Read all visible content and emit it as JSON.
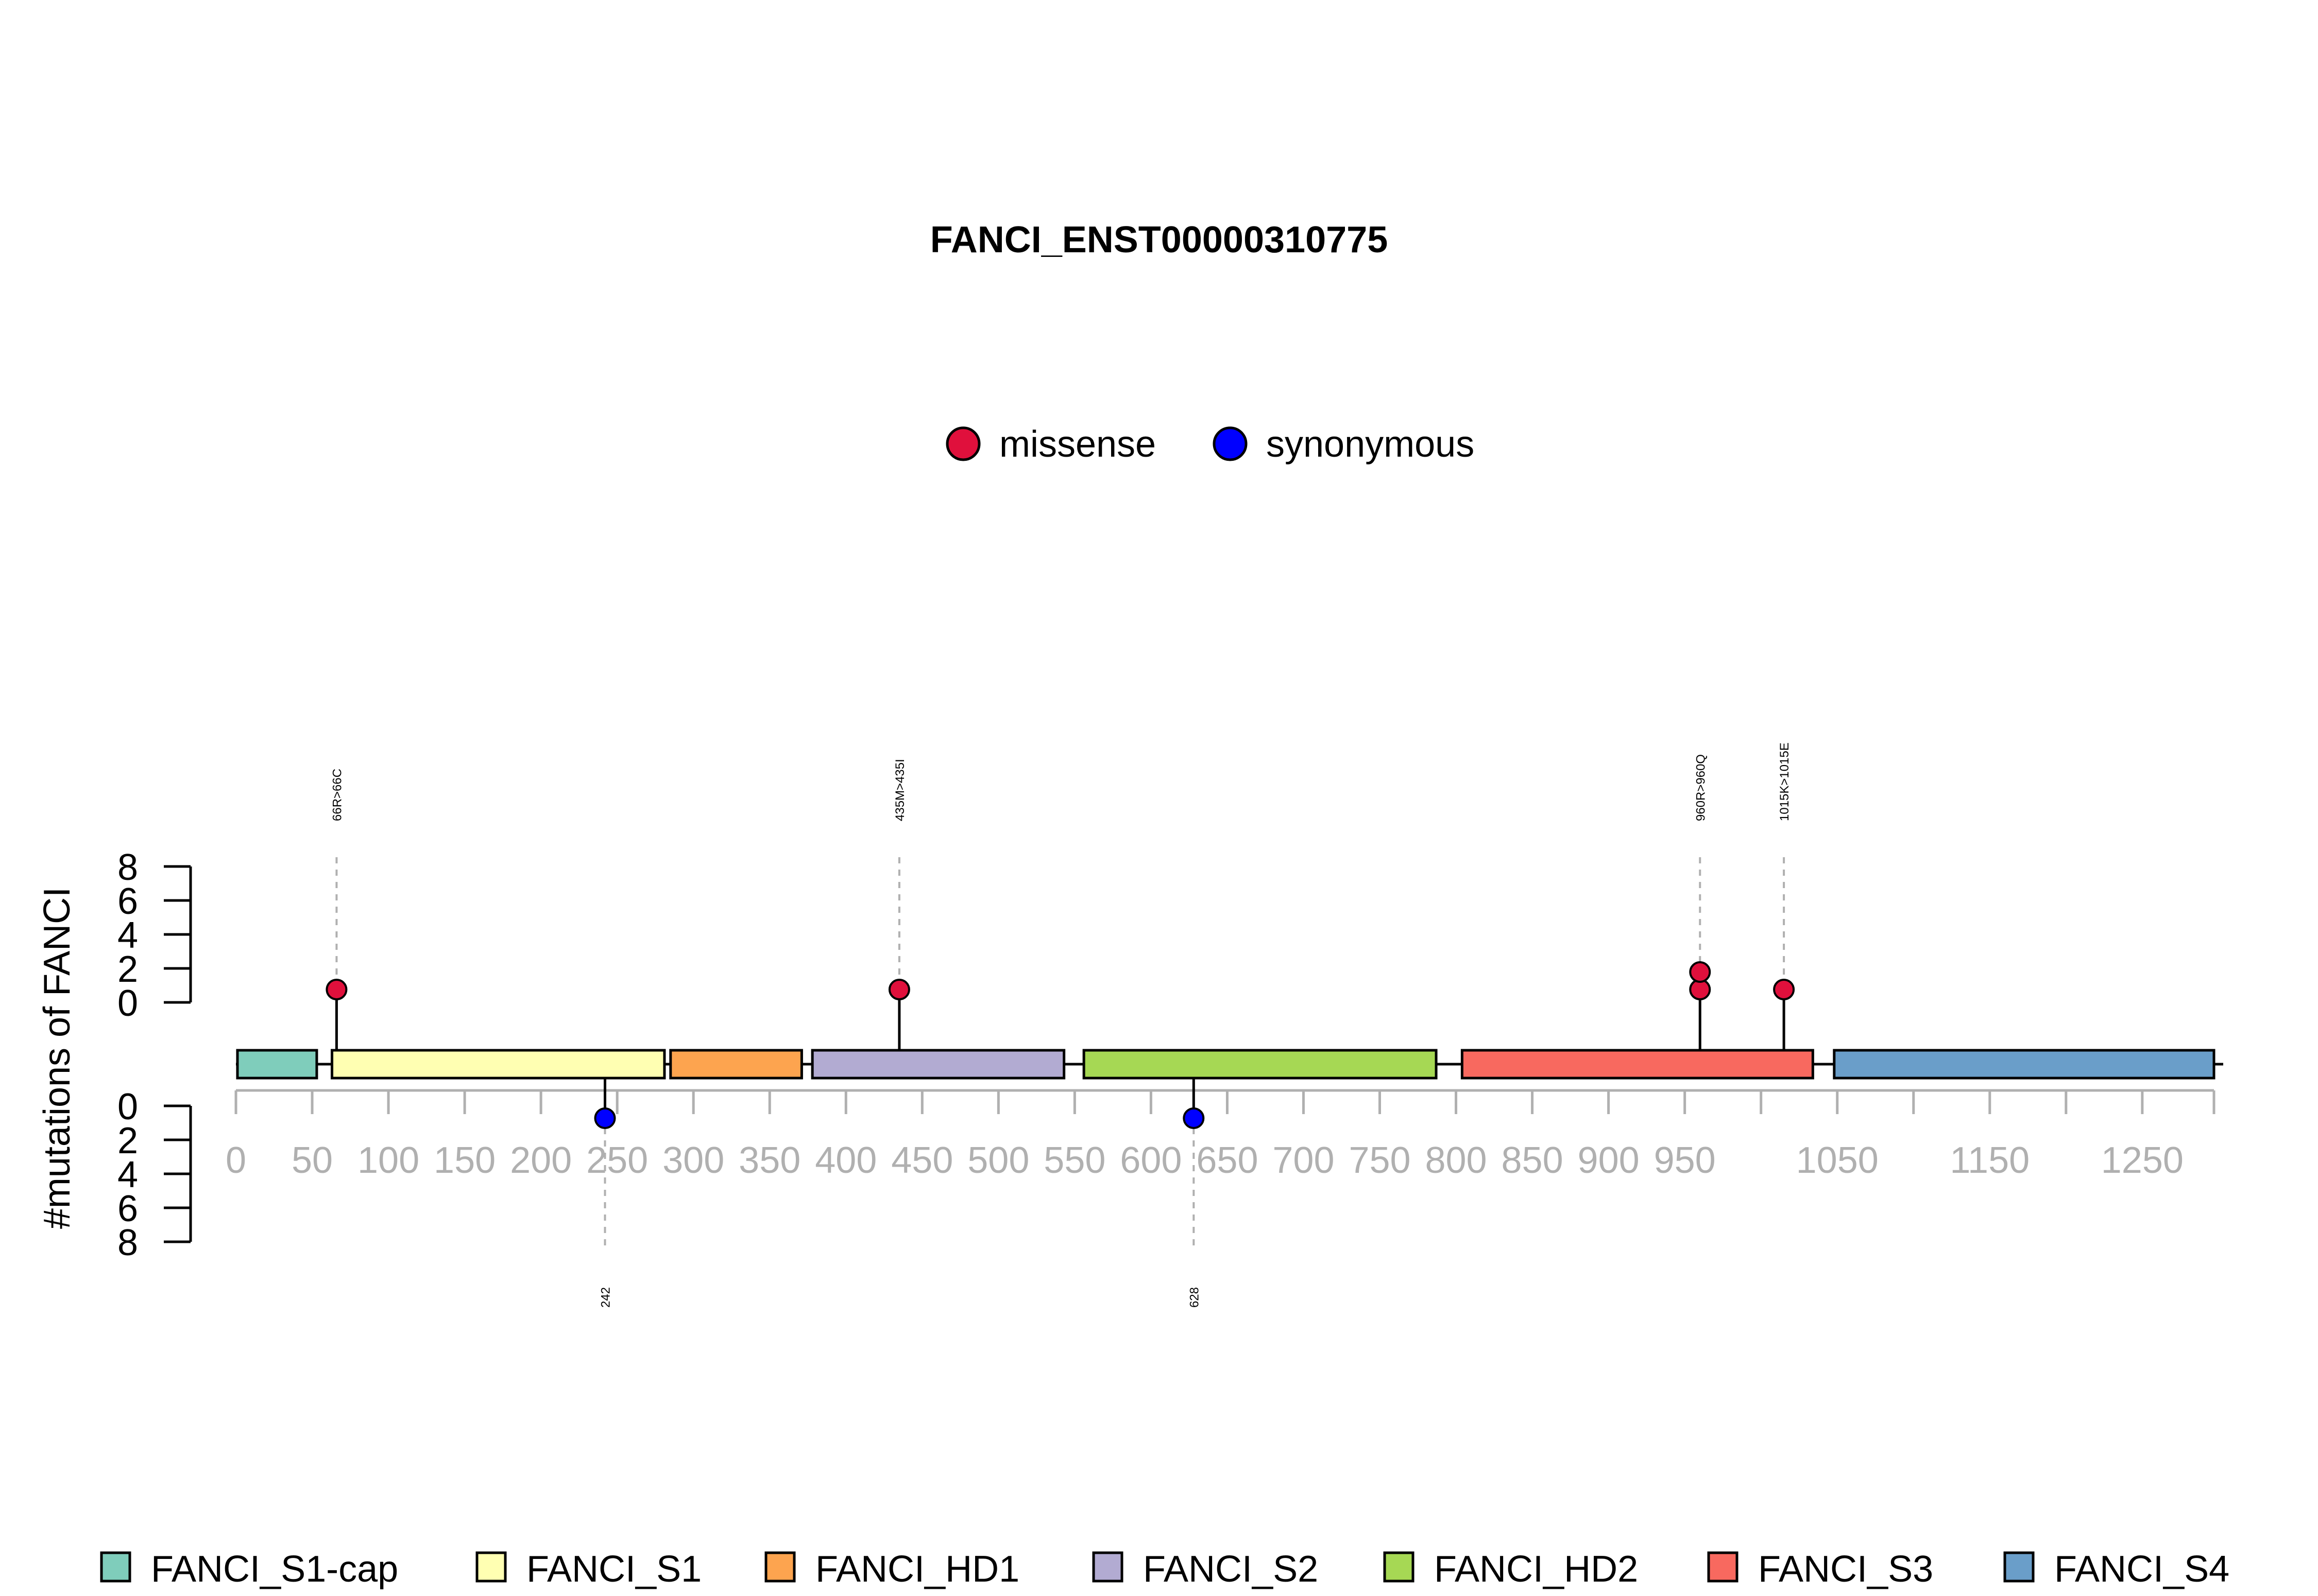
{
  "chart_data": {
    "type": "lollipop",
    "title": "FANCI_ENST00000310775",
    "ylabel": "#mutations of FANCI",
    "protein_length": 1297,
    "x_ticks": [
      0,
      50,
      100,
      150,
      200,
      250,
      300,
      350,
      400,
      450,
      500,
      550,
      600,
      650,
      700,
      750,
      800,
      850,
      900,
      950,
      1050,
      1150,
      1250
    ],
    "x_minor_ticks": [
      1000,
      1100,
      1200,
      1297
    ],
    "y_ticks": [
      0,
      2,
      4,
      6,
      8
    ],
    "ylim": [
      0,
      8
    ],
    "mutation_types": [
      {
        "name": "missense",
        "color": "#E0103C"
      },
      {
        "name": "synonymous",
        "color": "#0000FF"
      }
    ],
    "domains": [
      {
        "name": "FANCI_S1-cap",
        "start": 1,
        "end": 53,
        "color": "#7FCDBB"
      },
      {
        "name": "FANCI_S1",
        "start": 63,
        "end": 281,
        "color": "#FFFFB2"
      },
      {
        "name": "FANCI_HD1",
        "start": 285,
        "end": 371,
        "color": "#FDA44F"
      },
      {
        "name": "FANCI_S2",
        "start": 378,
        "end": 543,
        "color": "#B2ABD2"
      },
      {
        "name": "FANCI_HD2",
        "start": 556,
        "end": 787,
        "color": "#A6D854"
      },
      {
        "name": "FANCI_S3",
        "start": 804,
        "end": 1034,
        "color": "#F8695F"
      },
      {
        "name": "FANCI_S4",
        "start": 1048,
        "end": 1297,
        "color": "#6A9EC9"
      }
    ],
    "mutations_top": [
      {
        "position": 66,
        "label": "66R>66C",
        "type": "missense",
        "count": 1
      },
      {
        "position": 435,
        "label": "435M>435I",
        "type": "missense",
        "count": 1
      },
      {
        "position": 960,
        "label": "960R>960Q",
        "type": "missense",
        "count": 2
      },
      {
        "position": 1015,
        "label": "1015K>1015E",
        "type": "missense",
        "count": 1
      }
    ],
    "mutations_bottom": [
      {
        "position": 242,
        "label": "242",
        "type": "synonymous",
        "count": 1
      },
      {
        "position": 628,
        "label": "628",
        "type": "synonymous",
        "count": 1
      }
    ]
  }
}
